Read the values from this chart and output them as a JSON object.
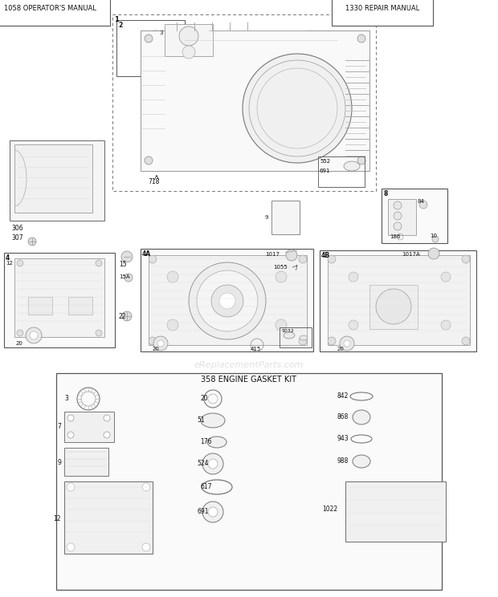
{
  "bg_color": "#ffffff",
  "border_color": "#555555",
  "text_color": "#111111",
  "box1_label": "1058 OPERATOR'S MANUAL",
  "box2_label": "1330 REPAIR MANUAL",
  "box3_label": "358 ENGINE GASKET KIT"
}
